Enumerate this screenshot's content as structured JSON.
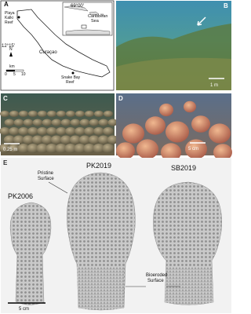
{
  "panels": {
    "a": {
      "label": "A",
      "longitude": "69°00'",
      "latitude": "12°15'",
      "site_1": [
        "Playa",
        "Kalki",
        "Reef"
      ],
      "site_2": [
        "Snake Bay",
        "Reef"
      ],
      "island": "Curaçao",
      "inset_label": [
        "Caribbean",
        "Sea"
      ],
      "scale_unit": "km",
      "scale_ticks": [
        "0",
        "5",
        "10"
      ],
      "north": "N"
    },
    "b": {
      "label": "B",
      "scale": "1 m"
    },
    "c": {
      "label": "C",
      "scale": "0.25 m"
    },
    "d": {
      "label": "D",
      "scale": "5 cm"
    },
    "e": {
      "label": "E",
      "specimens": [
        "PK2006",
        "PK2019",
        "SB2019"
      ],
      "top_note": [
        "Pristine",
        "Surface"
      ],
      "bottom_note": [
        "Bioeroded",
        "Surface"
      ],
      "scale": "5 cm"
    }
  }
}
